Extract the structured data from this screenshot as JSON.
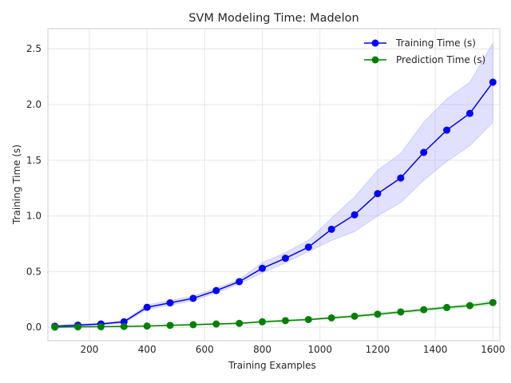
{
  "chart_data": {
    "type": "line",
    "title": "SVM Modeling Time: Madelon",
    "xlabel": "Training Examples",
    "ylabel": "Training Time (s)",
    "xlim": [
      56,
      1624
    ],
    "ylim": [
      -0.12,
      2.68
    ],
    "xticks": [
      200,
      400,
      600,
      800,
      1000,
      1200,
      1400,
      1600
    ],
    "yticks": [
      0.0,
      0.5,
      1.0,
      1.5,
      2.0,
      2.5
    ],
    "xtick_labels": [
      "200",
      "400",
      "600",
      "800",
      "1000",
      "1200",
      "1400",
      "1600"
    ],
    "ytick_labels": [
      "0.0",
      "0.5",
      "1.0",
      "1.5",
      "2.0",
      "2.5"
    ],
    "grid": true,
    "legend_position": "top-right",
    "x": [
      80,
      160,
      240,
      320,
      400,
      480,
      560,
      640,
      720,
      800,
      880,
      960,
      1040,
      1120,
      1200,
      1280,
      1360,
      1440,
      1520,
      1600
    ],
    "series": [
      {
        "name": "Training Time (s)",
        "color": "#0000ff",
        "band_color": "#aaaaff",
        "values": [
          0.01,
          0.02,
          0.03,
          0.05,
          0.18,
          0.22,
          0.26,
          0.33,
          0.41,
          0.53,
          0.62,
          0.72,
          0.88,
          1.01,
          1.2,
          1.34,
          1.57,
          1.77,
          1.92,
          2.2
        ],
        "lower": [
          0.005,
          0.012,
          0.022,
          0.04,
          0.16,
          0.2,
          0.24,
          0.31,
          0.39,
          0.49,
          0.58,
          0.68,
          0.78,
          0.86,
          1.0,
          1.12,
          1.32,
          1.49,
          1.63,
          1.84
        ],
        "upper": [
          0.015,
          0.028,
          0.038,
          0.06,
          0.2,
          0.24,
          0.28,
          0.35,
          0.43,
          0.58,
          0.67,
          0.78,
          0.98,
          1.17,
          1.41,
          1.56,
          1.84,
          2.05,
          2.2,
          2.55
        ]
      },
      {
        "name": "Prediction Time (s)",
        "color": "#008000",
        "band_color": "#aaddaa",
        "values": [
          0.002,
          0.004,
          0.006,
          0.008,
          0.012,
          0.018,
          0.024,
          0.03,
          0.036,
          0.05,
          0.06,
          0.07,
          0.085,
          0.1,
          0.118,
          0.138,
          0.158,
          0.178,
          0.195,
          0.222
        ],
        "lower": [
          0.0,
          0.002,
          0.004,
          0.006,
          0.009,
          0.014,
          0.019,
          0.025,
          0.031,
          0.044,
          0.053,
          0.063,
          0.077,
          0.091,
          0.108,
          0.127,
          0.146,
          0.165,
          0.181,
          0.205
        ],
        "upper": [
          0.004,
          0.006,
          0.008,
          0.01,
          0.015,
          0.022,
          0.029,
          0.035,
          0.041,
          0.056,
          0.067,
          0.077,
          0.093,
          0.109,
          0.128,
          0.149,
          0.17,
          0.191,
          0.209,
          0.239
        ]
      }
    ]
  }
}
